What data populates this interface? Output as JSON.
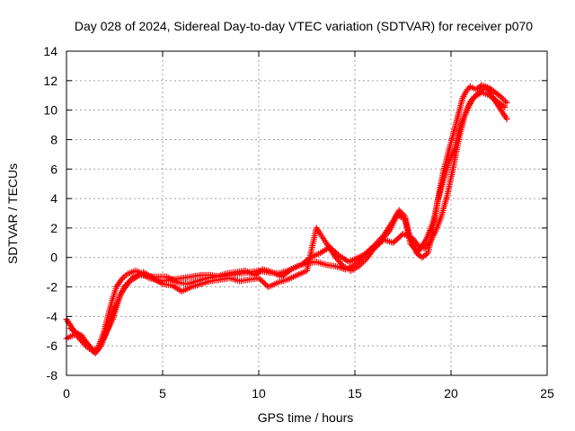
{
  "chart_data": {
    "type": "scatter",
    "title": "Day 028 of 2024, Sidereal Day-to-day VTEC variation (SDTVAR) for receiver p070",
    "xlabel": "GPS time / hours",
    "ylabel": "SDTVAR / TECUs",
    "xlim": [
      0,
      25
    ],
    "ylim": [
      -8,
      14
    ],
    "xticks": [
      "0",
      "5",
      "10",
      "15",
      "20",
      "25"
    ],
    "yticks": [
      "-8",
      "-6",
      "-4",
      "-2",
      "0",
      "2",
      "4",
      "6",
      "8",
      "10",
      "12",
      "14"
    ],
    "grid": true,
    "marker": "+",
    "color": "#ff0000",
    "series": [
      {
        "x": [
          0.0,
          0.2,
          0.4,
          0.6,
          0.8,
          1.0,
          1.2,
          1.4,
          1.6,
          1.8,
          2.0,
          2.2,
          2.4,
          2.6,
          2.8,
          3.0,
          3.2,
          3.4,
          3.6,
          3.8,
          4.0,
          4.3,
          4.6,
          5.0,
          5.5,
          6.0,
          6.5,
          7.0,
          7.5,
          8.0,
          8.5,
          9.0,
          9.5,
          10.0,
          10.5,
          11.0,
          11.5,
          12.0,
          12.5,
          13.0,
          13.5,
          14.0,
          14.5,
          15.0,
          15.5,
          16.0,
          16.5,
          17.0,
          17.3,
          17.6,
          17.9,
          18.2,
          18.5,
          18.8,
          19.0,
          19.2,
          19.4,
          19.6,
          19.8,
          20.0,
          20.2,
          20.4,
          20.6,
          20.8,
          21.0,
          21.3,
          21.6,
          22.0,
          22.3,
          22.6,
          22.9
        ],
        "y": [
          -4.2,
          -4.6,
          -5.0,
          -5.4,
          -5.7,
          -6.0,
          -6.2,
          -6.4,
          -6.3,
          -5.6,
          -4.8,
          -3.8,
          -2.8,
          -2.0,
          -1.6,
          -1.3,
          -1.1,
          -1.0,
          -0.9,
          -1.0,
          -1.2,
          -1.4,
          -1.5,
          -1.6,
          -1.5,
          -1.4,
          -1.3,
          -1.2,
          -1.2,
          -1.3,
          -1.2,
          -1.1,
          -1.0,
          -0.9,
          -1.0,
          -1.1,
          -0.9,
          -0.6,
          -0.4,
          -0.3,
          -0.5,
          -0.6,
          -0.8,
          -0.5,
          0.2,
          0.8,
          1.5,
          2.5,
          3.2,
          2.8,
          1.2,
          0.3,
          0.0,
          0.3,
          1.5,
          3.0,
          4.5,
          5.8,
          6.8,
          7.8,
          8.8,
          9.8,
          10.8,
          11.3,
          11.6,
          11.4,
          11.7,
          11.5,
          11.2,
          10.9,
          10.5
        ]
      },
      {
        "x": [
          0.0,
          0.3,
          0.6,
          0.9,
          1.2,
          1.5,
          1.8,
          2.1,
          2.5,
          3.0,
          3.5,
          4.0,
          5.0,
          5.5,
          6.0,
          6.5,
          7.0,
          7.5,
          8.0,
          8.5,
          9.0,
          9.5,
          10.0,
          10.5,
          11.0,
          11.5,
          12.0,
          12.5,
          13.0,
          13.3,
          13.6,
          14.0,
          14.4,
          14.8,
          15.2,
          15.6,
          16.0,
          16.5,
          17.0,
          17.5,
          18.0,
          18.3,
          18.6,
          18.9,
          19.2,
          19.5,
          19.8,
          20.1,
          20.4,
          20.7,
          21.0,
          21.4,
          21.8,
          22.2,
          22.6,
          22.9
        ],
        "y": [
          -5.5,
          -5.3,
          -5.2,
          -5.6,
          -6.0,
          -6.5,
          -6.0,
          -5.0,
          -3.5,
          -2.0,
          -1.3,
          -1.0,
          -1.8,
          -1.9,
          -2.3,
          -2.0,
          -1.8,
          -1.6,
          -1.5,
          -1.4,
          -1.6,
          -1.5,
          -1.4,
          -2.0,
          -1.7,
          -1.5,
          -1.2,
          -0.9,
          2.0,
          1.4,
          0.8,
          0.0,
          -0.6,
          -0.9,
          -0.6,
          -0.1,
          0.6,
          1.2,
          1.0,
          1.6,
          1.3,
          0.8,
          0.6,
          1.0,
          1.8,
          2.8,
          4.2,
          6.0,
          8.0,
          9.6,
          10.6,
          11.1,
          11.6,
          10.8,
          10.0,
          9.4
        ]
      },
      {
        "x": [
          0.2,
          0.5,
          0.8,
          1.1,
          1.4,
          1.7,
          2.0,
          2.4,
          2.8,
          3.3,
          3.8,
          4.5,
          5.2,
          5.8,
          6.3,
          6.8,
          7.3,
          7.8,
          8.3,
          8.8,
          9.3,
          9.8,
          10.2,
          10.7,
          11.2,
          11.7,
          12.2,
          12.7,
          13.2,
          13.7,
          14.2,
          14.7,
          15.5,
          16.2,
          16.8,
          17.2,
          17.6,
          17.9,
          18.3,
          18.7,
          19.1,
          19.3,
          19.6,
          19.9,
          20.2,
          20.5,
          20.9,
          21.2,
          21.6,
          22.0,
          22.4,
          22.8
        ],
        "y": [
          -4.8,
          -5.1,
          -5.3,
          -5.9,
          -6.3,
          -6.1,
          -5.3,
          -4.2,
          -2.5,
          -1.6,
          -1.2,
          -1.3,
          -1.3,
          -1.7,
          -1.8,
          -1.6,
          -1.4,
          -1.3,
          -1.1,
          -1.0,
          -0.9,
          -1.2,
          -0.8,
          -1.0,
          -1.3,
          -0.8,
          -0.5,
          0.0,
          0.3,
          0.7,
          0.1,
          -0.3,
          0.2,
          0.9,
          1.8,
          2.9,
          2.6,
          0.9,
          0.4,
          1.2,
          2.5,
          3.8,
          5.2,
          6.5,
          7.4,
          9.0,
          10.2,
          10.9,
          11.2,
          11.0,
          10.6,
          10.2
        ]
      }
    ]
  }
}
